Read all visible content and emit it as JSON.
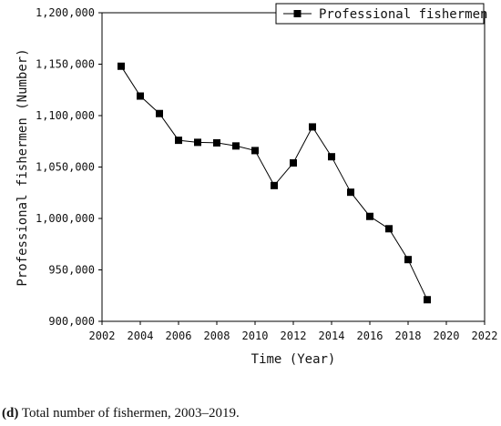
{
  "chart_data": {
    "type": "line",
    "xlabel": "Time (Year)",
    "ylabel": "Professional fishermen (Number)",
    "xlim": [
      2002,
      2022
    ],
    "ylim": [
      900000,
      1200000
    ],
    "xticks": [
      2002,
      2004,
      2006,
      2008,
      2010,
      2012,
      2014,
      2016,
      2018,
      2020,
      2022
    ],
    "yticks": [
      900000,
      950000,
      1000000,
      1050000,
      1100000,
      1150000,
      1200000
    ],
    "ytick_labels": [
      "900,000",
      "950,000",
      "1,000,000",
      "1,050,000",
      "1,100,000",
      "1,150,000",
      "1,200,000"
    ],
    "legend_position": "top-right",
    "series": [
      {
        "name": "Professional fishermen",
        "color": "#000000",
        "marker": "square",
        "x": [
          2003,
          2004,
          2005,
          2006,
          2007,
          2008,
          2009,
          2010,
          2011,
          2012,
          2013,
          2014,
          2015,
          2016,
          2017,
          2018,
          2019
        ],
        "y": [
          1148000,
          1119000,
          1102000,
          1076000,
          1074000,
          1073500,
          1070500,
          1066000,
          1032000,
          1054000,
          1089000,
          1060000,
          1025500,
          1002000,
          990000,
          960000,
          921000
        ]
      }
    ]
  },
  "caption": {
    "label": "(d)",
    "text": " Total number of fishermen, 2003–2019."
  }
}
